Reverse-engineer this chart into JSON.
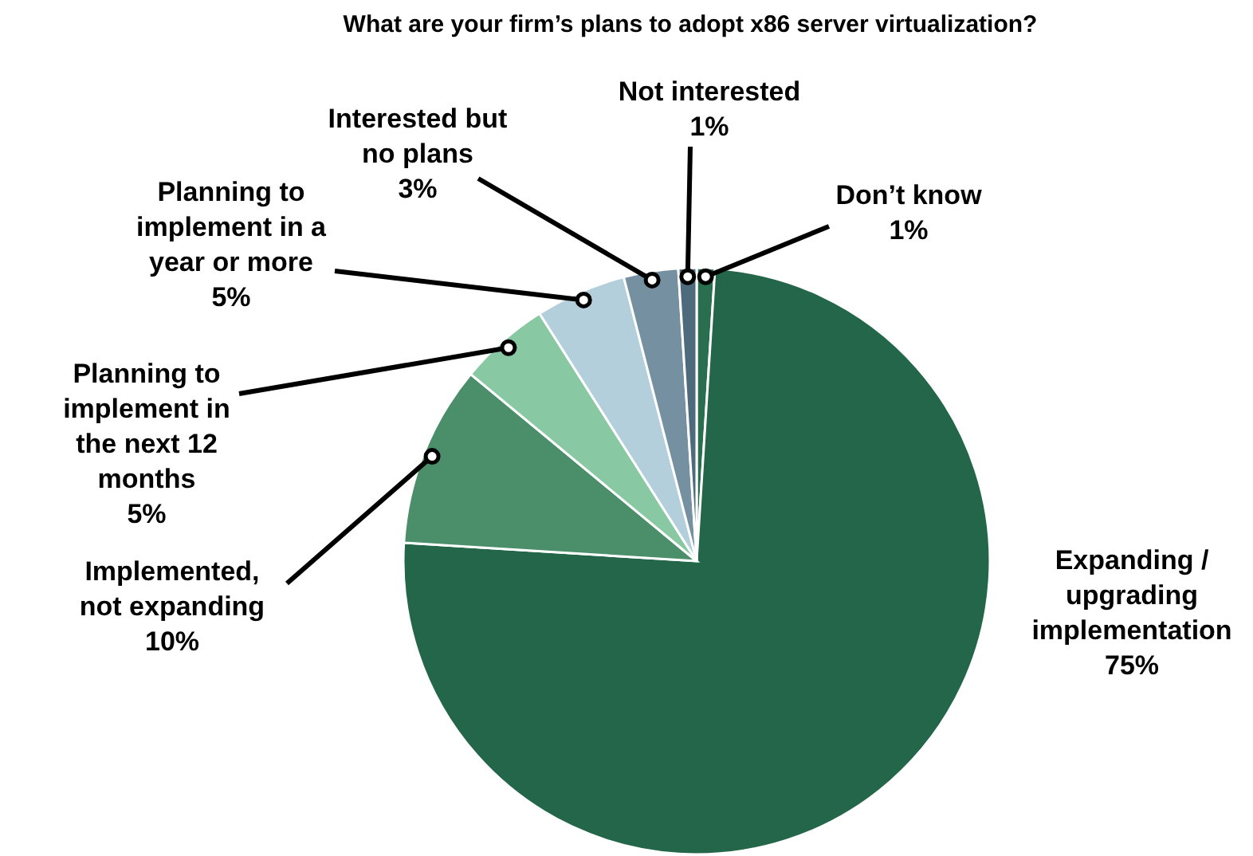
{
  "chart_data": {
    "type": "pie",
    "title": "What are your firm’s plans to adopt x86 server virtualization?",
    "categories": [
      "Don’t know",
      "Expanding / upgrading implementation",
      "Implemented, not expanding",
      "Planning to implement in the next 12 months",
      "Planning to implement in a year or more",
      "Interested but no plans",
      "Not interested"
    ],
    "values": [
      1,
      75,
      10,
      5,
      5,
      3,
      1
    ],
    "value_labels": [
      "1%",
      "75%",
      "10%",
      "5%",
      "5%",
      "3%",
      "1%"
    ],
    "colors": [
      "#2a6e50",
      "#236649",
      "#4a8f6a",
      "#88c9a3",
      "#b3cfdc",
      "#7590a0",
      "#4e6b7e"
    ]
  }
}
